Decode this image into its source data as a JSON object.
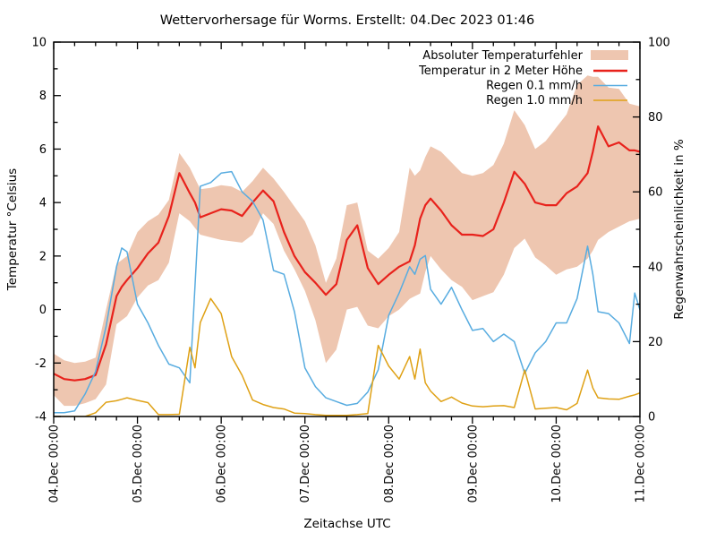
{
  "chart_data": {
    "type": "line",
    "title": "Wettervorhersage für Worms. Erstellt: 04.Dec 2023 01:46",
    "xlabel": "Zeitachse UTC",
    "ylabel_left": "Temperatur °Celsius",
    "ylabel_right": "Regenwahrscheinlichkeit in %",
    "x_range_hours": [
      0,
      168
    ],
    "y_left_range": [
      -4,
      10
    ],
    "y_right_range": [
      0,
      100
    ],
    "grid": false,
    "x_major_ticks": {
      "hours": [
        0,
        24,
        48,
        72,
        96,
        120,
        144,
        168
      ],
      "labels": [
        "04.Dec 00:00",
        "05.Dec 00:00",
        "06.Dec 00:00",
        "07.Dec 00:00",
        "08.Dec 00:00",
        "09.Dec 00:00",
        "10.Dec 00:00",
        "11.Dec 00:00"
      ]
    },
    "x_minor_step_hours": 6,
    "y_left_ticks": [
      10,
      8,
      6,
      4,
      2,
      0,
      -2,
      -4
    ],
    "y_left_minor_step": 1,
    "y_right_ticks": [
      100,
      80,
      60,
      40,
      20,
      0
    ],
    "y_right_minor_step": 10,
    "legend": {
      "position": "top-right-inside",
      "entries": [
        {
          "label": "Absoluter Temperaturfehler",
          "swatch": "band",
          "color": "#eec6b0"
        },
        {
          "label": "Temperatur in 2 Meter Höhe",
          "swatch": "line",
          "color": "#e8221c"
        },
        {
          "label": "Regen 0.1 mm/h",
          "swatch": "line",
          "color": "#58ace0"
        },
        {
          "label": "Regen 1.0 mm/h",
          "swatch": "line",
          "color": "#dfa115"
        }
      ]
    },
    "x_hours": [
      0,
      3,
      6,
      9,
      12,
      15,
      18,
      19.5,
      21,
      24,
      27,
      30,
      33,
      36,
      39,
      40.5,
      42,
      45,
      48,
      51,
      54,
      57,
      60,
      63,
      66,
      69,
      72,
      75,
      78,
      81,
      84,
      87,
      90,
      93,
      96,
      99,
      102,
      103.5,
      105,
      106.5,
      108,
      111,
      114,
      117,
      120,
      123,
      126,
      129,
      132,
      135,
      138,
      141,
      144,
      147,
      150,
      153,
      154.5,
      156,
      159,
      162,
      165,
      166.5,
      168
    ],
    "series": [
      {
        "name": "Absoluter Temperaturfehler",
        "axis": "left",
        "type": "band",
        "color": "#eec6b0",
        "upper": [
          -1.65,
          -1.9,
          -2.0,
          -1.95,
          -1.8,
          0.0,
          1.7,
          1.85,
          2.0,
          2.9,
          3.3,
          3.55,
          4.1,
          5.85,
          5.3,
          4.9,
          4.5,
          4.55,
          4.65,
          4.6,
          4.4,
          4.8,
          5.3,
          4.9,
          4.4,
          3.85,
          3.3,
          2.4,
          1.0,
          1.9,
          3.9,
          4.0,
          2.2,
          1.9,
          2.3,
          2.9,
          5.3,
          5.0,
          5.2,
          5.7,
          6.1,
          5.9,
          5.5,
          5.1,
          5.0,
          5.1,
          5.4,
          6.2,
          7.45,
          6.9,
          6.0,
          6.3,
          6.8,
          7.3,
          8.4,
          8.75,
          8.7,
          8.7,
          8.3,
          8.25,
          7.7,
          7.65,
          7.6
        ],
        "lower": [
          -3.2,
          -3.6,
          -3.6,
          -3.5,
          -3.35,
          -2.8,
          -0.55,
          -0.4,
          -0.25,
          0.45,
          0.9,
          1.1,
          1.75,
          3.6,
          3.3,
          3.05,
          2.8,
          2.7,
          2.6,
          2.55,
          2.5,
          2.8,
          3.6,
          3.2,
          2.2,
          1.5,
          0.7,
          -0.4,
          -2.0,
          -1.5,
          0.0,
          0.1,
          -0.6,
          -0.7,
          -0.25,
          0.0,
          0.4,
          0.5,
          0.6,
          1.4,
          2.0,
          1.5,
          1.1,
          0.85,
          0.35,
          0.5,
          0.65,
          1.3,
          2.3,
          2.65,
          1.95,
          1.65,
          1.3,
          1.5,
          1.6,
          1.9,
          2.2,
          2.6,
          2.9,
          3.1,
          3.3,
          3.35,
          3.4
        ]
      },
      {
        "name": "Temperatur in 2 Meter Höhe",
        "axis": "left",
        "type": "line",
        "color": "#e8221c",
        "width": 2.2,
        "values": [
          -2.4,
          -2.6,
          -2.65,
          -2.6,
          -2.45,
          -1.3,
          0.5,
          0.85,
          1.1,
          1.55,
          2.1,
          2.5,
          3.5,
          5.1,
          4.35,
          4.0,
          3.45,
          3.6,
          3.75,
          3.7,
          3.5,
          4.0,
          4.45,
          4.05,
          2.9,
          2.0,
          1.4,
          1.0,
          0.55,
          0.95,
          2.6,
          3.15,
          1.55,
          0.95,
          1.3,
          1.6,
          1.8,
          2.4,
          3.4,
          3.9,
          4.15,
          3.7,
          3.15,
          2.8,
          2.8,
          2.75,
          3.0,
          4.0,
          5.15,
          4.7,
          4.0,
          3.9,
          3.9,
          4.35,
          4.6,
          5.1,
          5.9,
          6.85,
          6.1,
          6.25,
          5.95,
          5.95,
          5.9
        ]
      },
      {
        "name": "Regen 0.1 mm/h",
        "axis": "right",
        "type": "line",
        "color": "#58ace0",
        "width": 1.5,
        "values": [
          1,
          1,
          1.5,
          6,
          12,
          24,
          40,
          45,
          44,
          30,
          25,
          19,
          14,
          13,
          9,
          35,
          61.5,
          62.5,
          65,
          65.4,
          60,
          57.5,
          52.5,
          39,
          38,
          28,
          13,
          8,
          5,
          4,
          3,
          3.5,
          6.5,
          12.5,
          27,
          33,
          40,
          38,
          42,
          43,
          34,
          30,
          34.5,
          28.5,
          23,
          23.5,
          20,
          22,
          20,
          11.5,
          17,
          20,
          25,
          25,
          31.5,
          45.5,
          38,
          28,
          27.5,
          25,
          19.5,
          33,
          28.5
        ]
      },
      {
        "name": "Regen 1.0 mm/h",
        "axis": "right",
        "type": "line",
        "color": "#dfa115",
        "width": 1.5,
        "values": [
          0,
          0,
          0,
          0,
          1,
          3.8,
          4.2,
          4.6,
          5,
          4.3,
          3.7,
          0.5,
          0.5,
          0.6,
          18.5,
          13,
          25.1,
          31.5,
          27.5,
          16,
          11,
          4.4,
          3.2,
          2.4,
          2,
          0.9,
          0.8,
          0.5,
          0.3,
          0.3,
          0.3,
          0.5,
          0.8,
          19,
          13.5,
          10,
          16,
          10,
          18,
          9,
          6.8,
          4,
          5.2,
          3.6,
          2.8,
          2.6,
          2.8,
          2.9,
          2.4,
          12.4,
          2,
          2.2,
          2.4,
          1.8,
          3.5,
          12.4,
          7.6,
          5,
          4.7,
          4.6,
          5.4,
          5.8,
          6.3
        ]
      }
    ]
  }
}
